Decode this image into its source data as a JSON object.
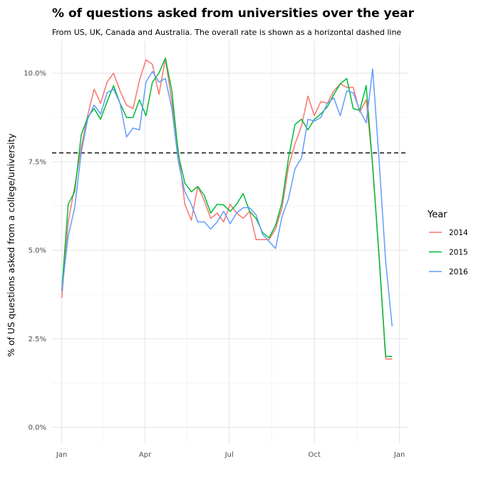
{
  "chart_data": {
    "type": "line",
    "title": "% of questions asked from universities over the year",
    "subtitle": "From US, UK, Canada and Australia. The overall rate is shown as a horizontal dashed line",
    "xlabel": "",
    "ylabel": "% of US questions asked from a college/university",
    "x_ticks": [
      {
        "label": "Jan",
        "week": 0
      },
      {
        "label": "Apr",
        "week": 12.86
      },
      {
        "label": "Jul",
        "week": 25.86
      },
      {
        "label": "Oct",
        "week": 39
      },
      {
        "label": "Jan",
        "week": 52.14
      }
    ],
    "y_ticks": [
      {
        "label": "0.0%",
        "value": 0
      },
      {
        "label": "2.5%",
        "value": 2.5
      },
      {
        "label": "5.0%",
        "value": 5
      },
      {
        "label": "7.5%",
        "value": 7.5
      },
      {
        "label": "10.0%",
        "value": 10
      }
    ],
    "xlim": [
      -1.5,
      53.5
    ],
    "ylim": [
      -0.45,
      10.9
    ],
    "grid": true,
    "legend": {
      "title": "Year",
      "position": "right"
    },
    "overall_rate": 7.75,
    "series": [
      {
        "name": "2014",
        "color": "#F8766D",
        "x": [
          0,
          1,
          2,
          3,
          4,
          5,
          6,
          7,
          8,
          9,
          10,
          11,
          12,
          13,
          14,
          15,
          16,
          17,
          18,
          19,
          20,
          21,
          22,
          23,
          24,
          25,
          26,
          27,
          28,
          29,
          30,
          31,
          32,
          33,
          34,
          35,
          36,
          37,
          38,
          39,
          40,
          41,
          42,
          43,
          44,
          45,
          46,
          47,
          48,
          49,
          50,
          51
        ],
        "values": [
          3.65,
          5.8,
          6.8,
          7.9,
          8.8,
          9.55,
          9.15,
          9.75,
          10.0,
          9.5,
          9.1,
          9.0,
          9.8,
          10.38,
          10.25,
          9.4,
          10.4,
          9.2,
          7.8,
          6.3,
          5.85,
          6.8,
          6.4,
          5.9,
          6.05,
          5.8,
          6.3,
          6.05,
          5.9,
          6.1,
          5.3,
          5.3,
          5.3,
          5.6,
          6.2,
          7.35,
          8.0,
          8.5,
          9.35,
          8.8,
          9.2,
          9.15,
          9.5,
          9.7,
          9.6,
          9.6,
          8.9,
          9.25,
          7.4,
          4.8,
          1.93,
          1.93
        ]
      },
      {
        "name": "2015",
        "color": "#00BA38",
        "x": [
          0,
          1,
          2,
          3,
          4,
          5,
          6,
          7,
          8,
          9,
          10,
          11,
          12,
          13,
          14,
          15,
          16,
          17,
          18,
          19,
          20,
          21,
          22,
          23,
          24,
          25,
          26,
          27,
          28,
          29,
          30,
          31,
          32,
          33,
          34,
          35,
          36,
          37,
          38,
          39,
          40,
          41,
          42,
          43,
          44,
          45,
          46,
          47,
          48,
          49,
          50,
          51
        ],
        "values": [
          3.85,
          6.3,
          6.65,
          8.25,
          8.75,
          9.0,
          8.7,
          9.2,
          9.65,
          9.15,
          8.75,
          8.75,
          9.25,
          8.8,
          9.75,
          10.0,
          10.43,
          9.5,
          7.7,
          6.9,
          6.65,
          6.8,
          6.55,
          6.05,
          6.3,
          6.28,
          6.1,
          6.3,
          6.6,
          6.1,
          5.9,
          5.5,
          5.35,
          5.7,
          6.35,
          7.6,
          8.55,
          8.7,
          8.4,
          8.7,
          8.85,
          9.05,
          9.4,
          9.7,
          9.85,
          9.0,
          8.95,
          9.65,
          7.35,
          4.8,
          2.0,
          2.0
        ]
      },
      {
        "name": "2016",
        "color": "#619CFF",
        "x": [
          0,
          1,
          2,
          3,
          4,
          5,
          6,
          7,
          8,
          9,
          10,
          11,
          12,
          13,
          14,
          15,
          16,
          17,
          18,
          19,
          20,
          21,
          22,
          23,
          24,
          25,
          26,
          27,
          28,
          29,
          30,
          31,
          32,
          33,
          34,
          35,
          36,
          37,
          38,
          39,
          40,
          41,
          42,
          43,
          44,
          45,
          46,
          47,
          48,
          49,
          50,
          51
        ],
        "values": [
          3.85,
          5.4,
          6.2,
          7.75,
          8.7,
          9.1,
          8.85,
          9.45,
          9.55,
          9.15,
          8.2,
          8.45,
          8.4,
          9.75,
          10.05,
          9.75,
          9.85,
          9.0,
          7.5,
          6.65,
          6.3,
          5.8,
          5.8,
          5.6,
          5.8,
          6.1,
          5.75,
          6.05,
          6.2,
          6.2,
          6.0,
          5.45,
          5.25,
          5.05,
          5.95,
          6.45,
          7.3,
          7.6,
          8.7,
          8.65,
          8.75,
          9.15,
          9.3,
          8.8,
          9.5,
          9.45,
          8.95,
          8.6,
          10.12,
          7.5,
          4.7,
          2.85
        ]
      }
    ]
  }
}
